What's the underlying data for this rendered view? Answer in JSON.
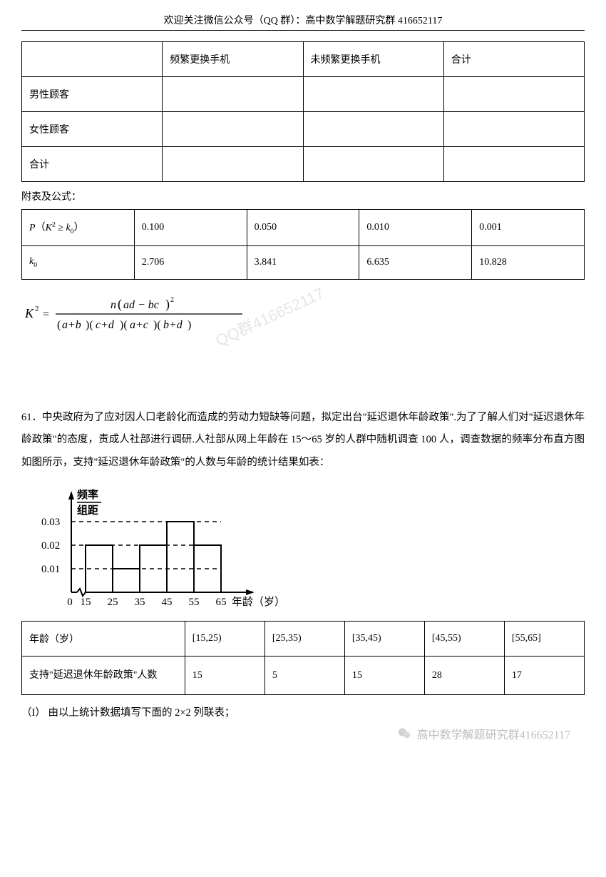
{
  "header": {
    "text": "欢迎关注微信公众号（QQ 群）：高中数学解题研究群 416652117"
  },
  "table1": {
    "columns": [
      "",
      "频繁更换手机",
      "未频繁更换手机",
      "合计"
    ],
    "rows": [
      {
        "label": "男性顾客",
        "cells": [
          "",
          "",
          ""
        ]
      },
      {
        "label": "女性顾客",
        "cells": [
          "",
          "",
          ""
        ]
      },
      {
        "label": "合计",
        "cells": [
          "",
          "",
          ""
        ]
      }
    ],
    "col_widths": [
      "25%",
      "25%",
      "25%",
      "25%"
    ]
  },
  "caption_attached": {
    "text": "附表及公式："
  },
  "table2": {
    "row1_label_html": "<i>P</i>（<i>K</i><span class='sup'>2</span> ≥ <i>k</i><span class='sub'>0</span>）",
    "row1_cells": [
      "0.100",
      "0.050",
      "0.010",
      "0.001"
    ],
    "row2_label_html": "<i>k</i><span class='sub'>0</span>",
    "row2_cells": [
      "2.706",
      "3.841",
      "6.635",
      "10.828"
    ],
    "col_widths": [
      "20%",
      "20%",
      "20%",
      "20%",
      "20%"
    ]
  },
  "formula": {
    "lhs": "K",
    "numerator": "n(ad − bc)",
    "denom": "(a+b)(c+d)(a+c)(b+d)"
  },
  "watermark_center": {
    "text": "QQ群416652117"
  },
  "question": {
    "number": "61．",
    "body": "中央政府为了应对因人口老龄化而造成的劳动力短缺等问题，拟定出台\"延迟退休年龄政策\".为了了解人们对\"延迟退休年龄政策\"的态度，责成人社部进行调研.人社部从网上年龄在 15～65 岁的人群中随机调查 100 人，调查数据的频率分布直方图如图所示，支持\"延迟退休年龄政策\"的人数与年龄的统计结果如表："
  },
  "chart": {
    "type": "histogram",
    "y_label_top": "频率",
    "y_label_bot": "组距",
    "x_label": "年龄（岁）",
    "y_ticks": [
      "0.01",
      "0.02",
      "0.03"
    ],
    "x_ticks": [
      "0",
      "15",
      "25",
      "35",
      "45",
      "55",
      "65"
    ],
    "bars": [
      0.02,
      0.01,
      0.02,
      0.03,
      0.02
    ],
    "axis_color": "#000000",
    "dash_color": "#000000",
    "font_size": 15
  },
  "table3": {
    "row1": [
      "年龄（岁）",
      "[15,25)",
      "[25,35)",
      "[35,45)",
      "[45,55)",
      "[55,65]"
    ],
    "row2": [
      "支持\"延迟退休年龄政策\"人数",
      "15",
      "5",
      "15",
      "28",
      "17"
    ],
    "col_widths": [
      "29%",
      "14.2%",
      "14.2%",
      "14.2%",
      "14.2%",
      "14.2%"
    ]
  },
  "sub_question": {
    "text": "（I） 由以上统计数据填写下面的 2×2 列联表；"
  },
  "footer_watermark": {
    "text": "高中数学解题研究群416652117"
  }
}
